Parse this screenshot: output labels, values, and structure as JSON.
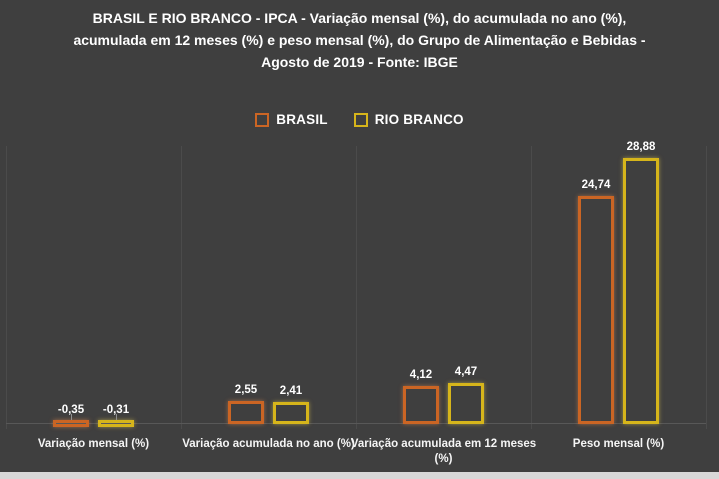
{
  "chart_data": {
    "type": "bar",
    "title": "BRASIL E RIO BRANCO - IPCA - Variação mensal (%), do acumulada no ano (%), acumulada em 12 meses (%) e peso mensal (%), do Grupo de Alimentação e Bebidas - Agosto de 2019 - Fonte: IBGE",
    "title_lines": [
      "BRASIL E RIO BRANCO - IPCA - Variação mensal (%), do acumulada no ano (%),",
      "acumulada em 12 meses (%) e peso mensal (%), do Grupo de Alimentação e Bebidas -",
      "Agosto de 2019 - Fonte: IBGE"
    ],
    "categories": [
      "Variação mensal (%)",
      "Variação acumulada no ano (%)",
      "Variação acumulada em 12 meses (%)",
      "Peso mensal (%)"
    ],
    "category_label_lines": [
      [
        "Variação mensal (%)"
      ],
      [
        "Variação acumulada no ano (%)"
      ],
      [
        "Variação acumulada em 12 meses",
        "(%)"
      ],
      [
        "Peso mensal (%)"
      ]
    ],
    "series": [
      {
        "name": "BRASIL",
        "color": "#CB6524",
        "glow": "rgba(255,150,80,0.5)",
        "values": [
          -0.35,
          2.55,
          4.12,
          24.74
        ],
        "value_labels": [
          "-0,35",
          "2,55",
          "4,12",
          "24,74"
        ]
      },
      {
        "name": "RIO BRANCO",
        "color": "#D6B51B",
        "glow": "rgba(255,225,80,0.5)",
        "values": [
          -0.31,
          2.41,
          4.47,
          28.88
        ],
        "value_labels": [
          "-0,31",
          "2,41",
          "4,47",
          "28,88"
        ]
      }
    ],
    "ylim": [
      -1,
      30
    ],
    "grid": "vertical-category-separators",
    "legend_position": "top",
    "background_color": "#3F3F3F",
    "text_color": "#FFFFFF",
    "bottom_edge_color": "#D8D8D8"
  }
}
